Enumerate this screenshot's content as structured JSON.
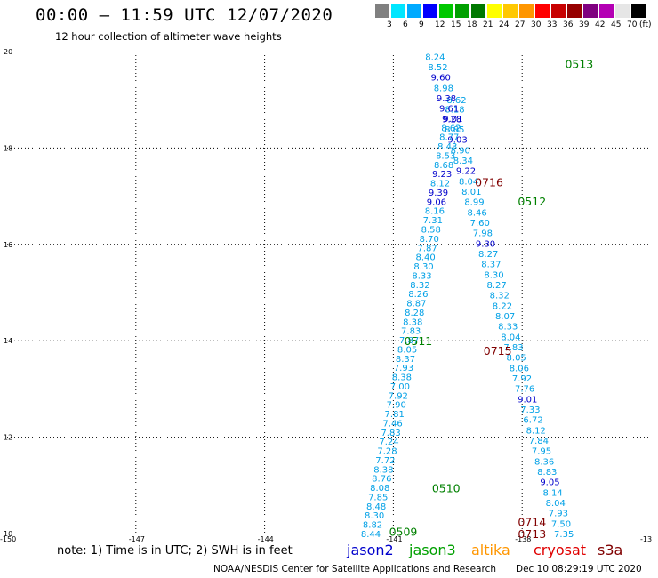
{
  "header": {
    "title": "00:00 – 11:59 UTC 12/07/2020",
    "subtitle": "12 hour collection of altimeter wave heights"
  },
  "color_scale": {
    "swatches": [
      "#808080",
      "#00e6ff",
      "#00aaff",
      "#0000ff",
      "#00c800",
      "#00a000",
      "#007800",
      "#ffff00",
      "#ffc800",
      "#ff9600",
      "#ff0000",
      "#c80000",
      "#960000",
      "#800080",
      "#b400b4",
      "#e6e6e6",
      "#000000"
    ],
    "labels": [
      "3",
      "6",
      "9",
      "12",
      "15",
      "18",
      "21",
      "24",
      "27",
      "30",
      "33",
      "36",
      "39",
      "42",
      "45",
      "70",
      "(ft)"
    ]
  },
  "chart_data": {
    "type": "scatter",
    "x_ticks": [
      "-150",
      "-147",
      "-144",
      "-141",
      "-138",
      "-13"
    ],
    "y_ticks": [
      "10",
      "12",
      "14",
      "16",
      "18",
      "20"
    ],
    "xlim": [
      -150,
      -135
    ],
    "ylim": [
      10,
      20
    ],
    "grid": true,
    "colors": {
      "light": "#00a0e6",
      "dark": "#0000cc"
    },
    "tracks": [
      {
        "name": "track-0509-0510-0716",
        "lon_start": -141.55,
        "lat_start": 10.0,
        "lon_end": -139.55,
        "lat_end": 19.0,
        "labels": [
          {
            "text": "0509",
            "lon": -141.1,
            "lat": 10.05,
            "color": "#008000"
          },
          {
            "text": "0510",
            "lon": -140.1,
            "lat": 10.95,
            "color": "#008000"
          },
          {
            "text": "0716",
            "lon": -139.1,
            "lat": 17.3,
            "color": "#800000"
          }
        ],
        "values": [
          "8.44",
          "8.82",
          "8.30",
          "8.48",
          "7.85",
          "8.08",
          "8.76",
          "8.38",
          "7.72",
          "7.28",
          "7.24",
          "7.83",
          "7.46",
          "7.81",
          "7.90",
          "7.92",
          "7.00",
          "8.38",
          "7.93",
          "8.37",
          "8.05",
          "7.87",
          "7.83",
          "8.38",
          "8.28",
          "8.87",
          "8.26",
          "8.32",
          "8.33",
          "8.30",
          "8.40",
          "7.87",
          "8.70",
          "8.58",
          "7.31",
          "8.16",
          "9.06",
          "9.39",
          "8.12",
          "9.23",
          "8.68",
          "8.53",
          "8.43",
          "8.77",
          "8.62",
          "9.01",
          "8.18",
          "8.62"
        ],
        "dark_indices": [
          36,
          37,
          39,
          45
        ]
      },
      {
        "name": "track-0511-0512-0513",
        "lon_start": -137.05,
        "lat_start": 10.0,
        "lon_end": -140.05,
        "lat_end": 19.9,
        "labels": [
          {
            "text": "0511",
            "lon": -140.75,
            "lat": 14.0,
            "color": "#008000"
          },
          {
            "text": "0512",
            "lon": -138.1,
            "lat": 16.9,
            "color": "#008000"
          },
          {
            "text": "0513",
            "lon": -137.0,
            "lat": 19.75,
            "color": "#008000"
          },
          {
            "text": "0715",
            "lon": -138.9,
            "lat": 13.8,
            "color": "#800000"
          },
          {
            "text": "0714",
            "lon": -138.1,
            "lat": 10.25,
            "color": "#800000"
          },
          {
            "text": "0713",
            "lon": -138.1,
            "lat": 10.0,
            "color": "#800000"
          }
        ],
        "values": [
          "7.35",
          "7.50",
          "7.93",
          "8.04",
          "8.14",
          "9.05",
          "8.83",
          "8.36",
          "7.95",
          "7.84",
          "8.12",
          "6.72",
          "7.33",
          "9.01",
          "7.76",
          "7.92",
          "8.06",
          "8.05",
          "7.83",
          "8.04",
          "8.33",
          "8.07",
          "8.22",
          "8.32",
          "8.27",
          "8.30",
          "8.37",
          "8.27",
          "9.30",
          "7.98",
          "7.60",
          "8.46",
          "8.99",
          "8.01",
          "8.04",
          "9.22",
          "8.34",
          "8.90",
          "9.03",
          "8.85",
          "9.28",
          "9.61",
          "9.38",
          "8.98",
          "9.60",
          "8.52",
          "8.24"
        ],
        "dark_indices": [
          5,
          13,
          28,
          35,
          38,
          40,
          41,
          42,
          44
        ]
      }
    ]
  },
  "footer": {
    "note": "note: 1) Time is in UTC; 2) SWH is in feet",
    "satellites": [
      {
        "label": "jason2",
        "color": "#0000cc"
      },
      {
        "label": "jason3",
        "color": "#00a000"
      },
      {
        "label": "altika",
        "color": "#ff9600"
      },
      {
        "label": "cryosat",
        "color": "#e00000"
      },
      {
        "label": "s3a",
        "color": "#800000"
      }
    ],
    "credit": "NOAA/NESDIS Center for Satellite Applications and Research",
    "timestamp": "Dec 10 08:29:19 UTC 2020"
  }
}
